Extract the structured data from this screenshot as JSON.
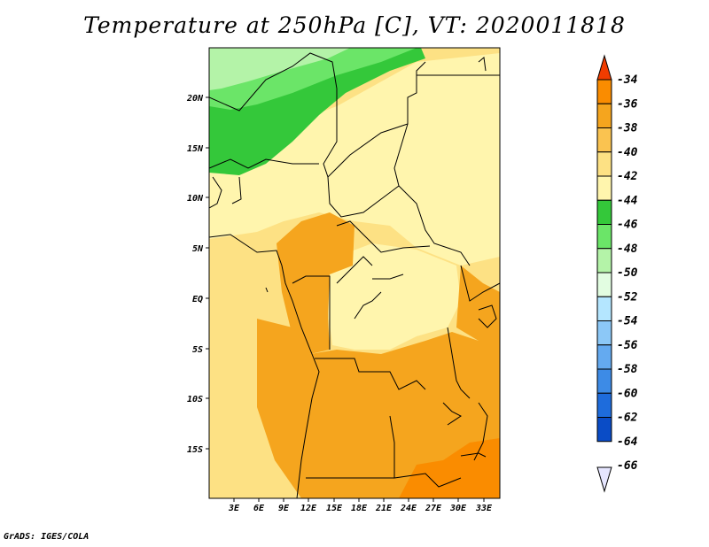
{
  "title": "Temperature at 250hPa [C], VT: 2020011818",
  "credit": "GrADS: IGES/COLA",
  "map": {
    "variable": "Temperature",
    "level": "250hPa",
    "units": "C",
    "valid_time": "2020011818",
    "lat_labels": [
      "20N",
      "15N",
      "10N",
      "5N",
      "EQ",
      "5S",
      "10S",
      "15S"
    ],
    "lon_labels": [
      "3E",
      "6E",
      "9E",
      "12E",
      "15E",
      "18E",
      "21E",
      "24E",
      "27E",
      "30E",
      "33E"
    ]
  },
  "colorbar": {
    "labels": [
      "-34",
      "-36",
      "-38",
      "-40",
      "-42",
      "-44",
      "-46",
      "-48",
      "-50",
      "-52",
      "-54",
      "-56",
      "-58",
      "-60",
      "-62",
      "-64",
      "-66"
    ],
    "colors": [
      "#f03c00",
      "#fa8c00",
      "#f5a51e",
      "#fac350",
      "#fde184",
      "#fff5ad",
      "#34c83a",
      "#6be568",
      "#b4f3a8",
      "#e2fde1",
      "#b4e6ff",
      "#8cc8f7",
      "#64aaf0",
      "#3d8be6",
      "#1e6cdc",
      "#0a4cc6",
      "#00106e"
    ],
    "bins": [
      {
        "color": "#f03c00",
        "label": "-34"
      },
      {
        "color": "#fa8c00",
        "label": "-36"
      },
      {
        "color": "#f5a51e",
        "label": "-38"
      },
      {
        "color": "#fac350",
        "label": "-40"
      },
      {
        "color": "#fde184",
        "label": "-42"
      },
      {
        "color": "#fff5ad",
        "label": "-44"
      },
      {
        "color": "#34c83a",
        "label": "-46"
      },
      {
        "color": "#6be568",
        "label": "-48"
      },
      {
        "color": "#b4f3a8",
        "label": "-50"
      },
      {
        "color": "#e2fde1",
        "label": "-52"
      },
      {
        "color": "#b4e6ff",
        "label": "-54"
      },
      {
        "color": "#8cc8f7",
        "label": "-56"
      },
      {
        "color": "#64aaf0",
        "label": "-58"
      },
      {
        "color": "#3d8be6",
        "label": "-60"
      },
      {
        "color": "#1e6cdc",
        "label": "-62"
      },
      {
        "color": "#0a4cc6",
        "label": "-64"
      },
      {
        "color": "#00106e",
        "label": "-66"
      }
    ]
  }
}
